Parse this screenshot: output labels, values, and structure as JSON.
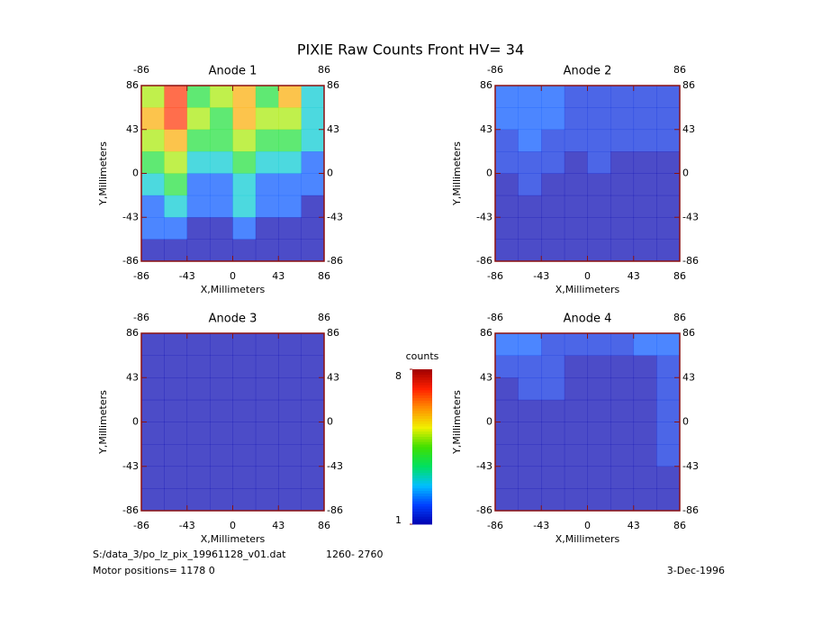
{
  "title": "PIXIE Raw Counts Front HV= 34",
  "footer": {
    "file": "S:/data_3/po_lz_pix_19961128_v01.dat",
    "range": "1260- 2760",
    "motor": "Motor positions= 1178 0",
    "date": "3-Dec-1996"
  },
  "colorbar": {
    "label": "counts",
    "lim": [
      1,
      8
    ],
    "ticks": [
      1,
      8
    ],
    "colors": [
      "#0000b0",
      "#0040ff",
      "#00c0ff",
      "#00e060",
      "#40e000",
      "#f0f000",
      "#ff9000",
      "#ff2000",
      "#a00000"
    ]
  },
  "chart_data": [
    {
      "type": "heatmap",
      "title": "Anode 1",
      "x_label": "X,Millimeters",
      "y_label": "Y,Millimeters",
      "xlim": [
        -86,
        86
      ],
      "ylim": [
        -86,
        86
      ],
      "xticks": [
        -86,
        -43,
        0,
        43,
        86
      ],
      "yticks": [
        -86,
        -43,
        0,
        43,
        86
      ],
      "values": [
        [
          5,
          7,
          4,
          5,
          6,
          4,
          6,
          3
        ],
        [
          6,
          7,
          5,
          4,
          6,
          5,
          5,
          3
        ],
        [
          5,
          6,
          4,
          4,
          5,
          4,
          4,
          3
        ],
        [
          4,
          5,
          3,
          3,
          4,
          3,
          3,
          2
        ],
        [
          3,
          4,
          2,
          2,
          3,
          2,
          2,
          2
        ],
        [
          2,
          3,
          2,
          2,
          3,
          2,
          2,
          1
        ],
        [
          2,
          2,
          1,
          1,
          2,
          1,
          1,
          1
        ],
        [
          1,
          1,
          1,
          1,
          1,
          1,
          1,
          1
        ]
      ]
    },
    {
      "type": "heatmap",
      "title": "Anode 2",
      "x_label": "X,Millimeters",
      "y_label": "Y,Millimeters",
      "xlim": [
        -86,
        86
      ],
      "ylim": [
        -86,
        86
      ],
      "xticks": [
        -86,
        -43,
        0,
        43,
        86
      ],
      "yticks": [
        -86,
        -43,
        0,
        43,
        86
      ],
      "values": [
        [
          2,
          2,
          2,
          1.5,
          1.5,
          1.5,
          1.5,
          1.5
        ],
        [
          2,
          2,
          2,
          1.5,
          1.5,
          1.5,
          1.5,
          1.5
        ],
        [
          1.5,
          2,
          1.5,
          1.5,
          1.5,
          1.5,
          1.5,
          1.5
        ],
        [
          1.5,
          1.5,
          1.5,
          1,
          1.5,
          1,
          1,
          1
        ],
        [
          1,
          1.5,
          1,
          1,
          1,
          1,
          1,
          1
        ],
        [
          1,
          1,
          1,
          1,
          1,
          1,
          1,
          1
        ],
        [
          1,
          1,
          1,
          1,
          1,
          1,
          1,
          1
        ],
        [
          1,
          1,
          1,
          1,
          1,
          1,
          1,
          1
        ]
      ]
    },
    {
      "type": "heatmap",
      "title": "Anode 3",
      "x_label": "X,Millimeters",
      "y_label": "Y,Millimeters",
      "xlim": [
        -86,
        86
      ],
      "ylim": [
        -86,
        86
      ],
      "xticks": [
        -86,
        -43,
        0,
        43,
        86
      ],
      "yticks": [
        -86,
        -43,
        0,
        43,
        86
      ],
      "values": [
        [
          1,
          1,
          1,
          1,
          1,
          1,
          1,
          1
        ],
        [
          1,
          1,
          1,
          1,
          1,
          1,
          1,
          1
        ],
        [
          1,
          1,
          1,
          1,
          1,
          1,
          1,
          1
        ],
        [
          1,
          1,
          1,
          1,
          1,
          1,
          1,
          1
        ],
        [
          1,
          1,
          1,
          1,
          1,
          1,
          1,
          1
        ],
        [
          1,
          1,
          1,
          1,
          1,
          1,
          1,
          1
        ],
        [
          1,
          1,
          1,
          1,
          1,
          1,
          1,
          1
        ],
        [
          1,
          1,
          1,
          1,
          1,
          1,
          1,
          1
        ]
      ]
    },
    {
      "type": "heatmap",
      "title": "Anode 4",
      "x_label": "X,Millimeters",
      "y_label": "Y,Millimeters",
      "xlim": [
        -86,
        86
      ],
      "ylim": [
        -86,
        86
      ],
      "xticks": [
        -86,
        -43,
        0,
        43,
        86
      ],
      "yticks": [
        -86,
        -43,
        0,
        43,
        86
      ],
      "values": [
        [
          2,
          2,
          1.5,
          1.5,
          1.5,
          1.5,
          2,
          2
        ],
        [
          1.5,
          1.5,
          1.5,
          1,
          1,
          1,
          1,
          1.5
        ],
        [
          1,
          1.5,
          1.5,
          1,
          1,
          1,
          1,
          1.5
        ],
        [
          1,
          1,
          1,
          1,
          1,
          1,
          1,
          1.5
        ],
        [
          1,
          1,
          1,
          1,
          1,
          1,
          1,
          1.5
        ],
        [
          1,
          1,
          1,
          1,
          1,
          1,
          1,
          1.5
        ],
        [
          1,
          1,
          1,
          1,
          1,
          1,
          1,
          1
        ],
        [
          1,
          1,
          1,
          1,
          1,
          1,
          1,
          1
        ]
      ]
    }
  ]
}
